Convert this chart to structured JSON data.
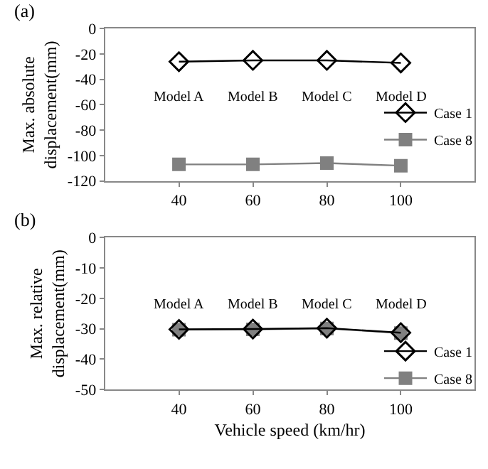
{
  "chart_data": [
    {
      "type": "line",
      "title": "(a)",
      "ylabel": "Max. absolute\ndisplacement(mm)",
      "x": [
        40,
        60,
        80,
        100
      ],
      "xlim": [
        20,
        120
      ],
      "xticks": [
        40,
        60,
        80,
        100
      ],
      "ylim": [
        -120,
        0
      ],
      "yticks": [
        -120,
        -100,
        -80,
        -60,
        -40,
        -20,
        0
      ],
      "grid": false,
      "legend": "right",
      "line_style": "solid",
      "series": [
        {
          "name": "Case 1",
          "color": "#000000",
          "marker": "diamond",
          "values": [
            -26,
            -25,
            -25,
            -27
          ]
        },
        {
          "name": "Case 8",
          "color": "#808080",
          "marker": "square",
          "values": [
            -107,
            -107,
            -106,
            -108
          ]
        }
      ],
      "annotations": [
        "Model A",
        "Model B",
        "Model C",
        "Model D"
      ]
    },
    {
      "type": "line",
      "title": "(b)",
      "ylabel": "Max. relative\ndisplacement(mm)",
      "xlabel": "Vehicle speed (km/hr)",
      "x": [
        40,
        60,
        80,
        100
      ],
      "xlim": [
        20,
        120
      ],
      "xticks": [
        40,
        60,
        80,
        100
      ],
      "ylim": [
        -50,
        0
      ],
      "yticks": [
        -50,
        -40,
        -30,
        -20,
        -10,
        0
      ],
      "grid": false,
      "legend": "bottom right",
      "line_style": "solid",
      "series": [
        {
          "name": "Case 1",
          "color": "#000000",
          "marker": "diamond",
          "values": [
            -30.2,
            -30.1,
            -29.8,
            -31.3
          ]
        },
        {
          "name": "Case 8",
          "color": "#808080",
          "marker": "square",
          "values": [
            -30.3,
            -30.2,
            -29.9,
            -31.4
          ]
        }
      ],
      "annotations": [
        "Model A",
        "Model B",
        "Model C",
        "Model D"
      ]
    }
  ]
}
